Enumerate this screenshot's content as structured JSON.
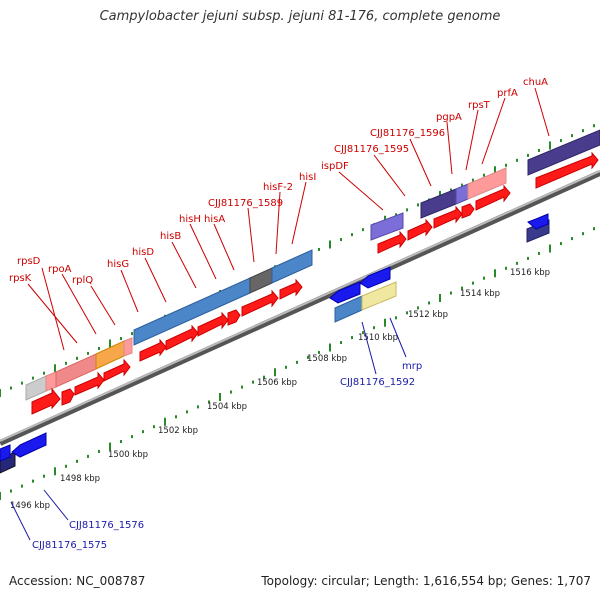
{
  "title": "Campylobacter jejuni subsp. jejuni 81-176, complete genome",
  "accession": "Accession: NC_008787",
  "topology": "Topology: circular; Length: 1,616,554 bp; Genes: 1,707",
  "scale_labels": [
    "1496 kbp",
    "1498 kbp",
    "1500 kbp",
    "1502 kbp",
    "1504 kbp",
    "1506 kbp",
    "1508 kbp",
    "1510 kbp",
    "1512 kbp",
    "1514 kbp",
    "1516 kbp"
  ],
  "gene_labels_top": [
    "rpsD",
    "rpsK",
    "rpoA",
    "rplQ",
    "hisG",
    "hisD",
    "hisB",
    "hisH",
    "hisA",
    "CJJ81176_1589",
    "hisF-2",
    "hisI",
    "ispDF",
    "CJJ81176_1595",
    "CJJ81176_1596",
    "pgpA",
    "rpsT",
    "prfA",
    "chuA"
  ],
  "gene_labels_bottom": [
    "CJJ81176_1575",
    "CJJ81176_1576",
    "CJJ81176_1592",
    "mrp"
  ],
  "colors": {
    "forward_cds": "#ff1a1a",
    "reverse_cds": "#1a1aee",
    "backbone": "#888888",
    "tick": "#2a8a2a",
    "label_top": "#cc0000",
    "label_bottom": "#1a1aa8"
  }
}
